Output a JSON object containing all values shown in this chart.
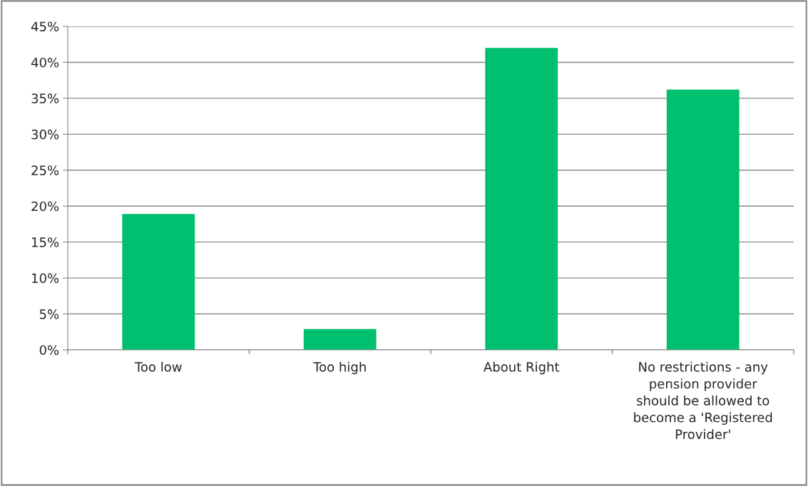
{
  "chart_data": {
    "type": "bar",
    "categories": [
      "Too low",
      "Too high",
      "About Right",
      "No restrictions - any pension provider should be allowed to become a 'Registered Provider'"
    ],
    "values": [
      18.9,
      2.9,
      42.0,
      36.2
    ],
    "color": "#00bf6f",
    "ylim": [
      0,
      45
    ],
    "yticks": [
      {
        "value": 0,
        "label": "0%"
      },
      {
        "value": 5,
        "label": "5%"
      },
      {
        "value": 10,
        "label": "10%"
      },
      {
        "value": 15,
        "label": "15%"
      },
      {
        "value": 20,
        "label": "20%"
      },
      {
        "value": 25,
        "label": "25%"
      },
      {
        "value": 30,
        "label": "30%"
      },
      {
        "value": 35,
        "label": "35%"
      },
      {
        "value": 40,
        "label": "40%"
      },
      {
        "value": 45,
        "label": "45%"
      }
    ],
    "grid": "y",
    "legend": false
  }
}
